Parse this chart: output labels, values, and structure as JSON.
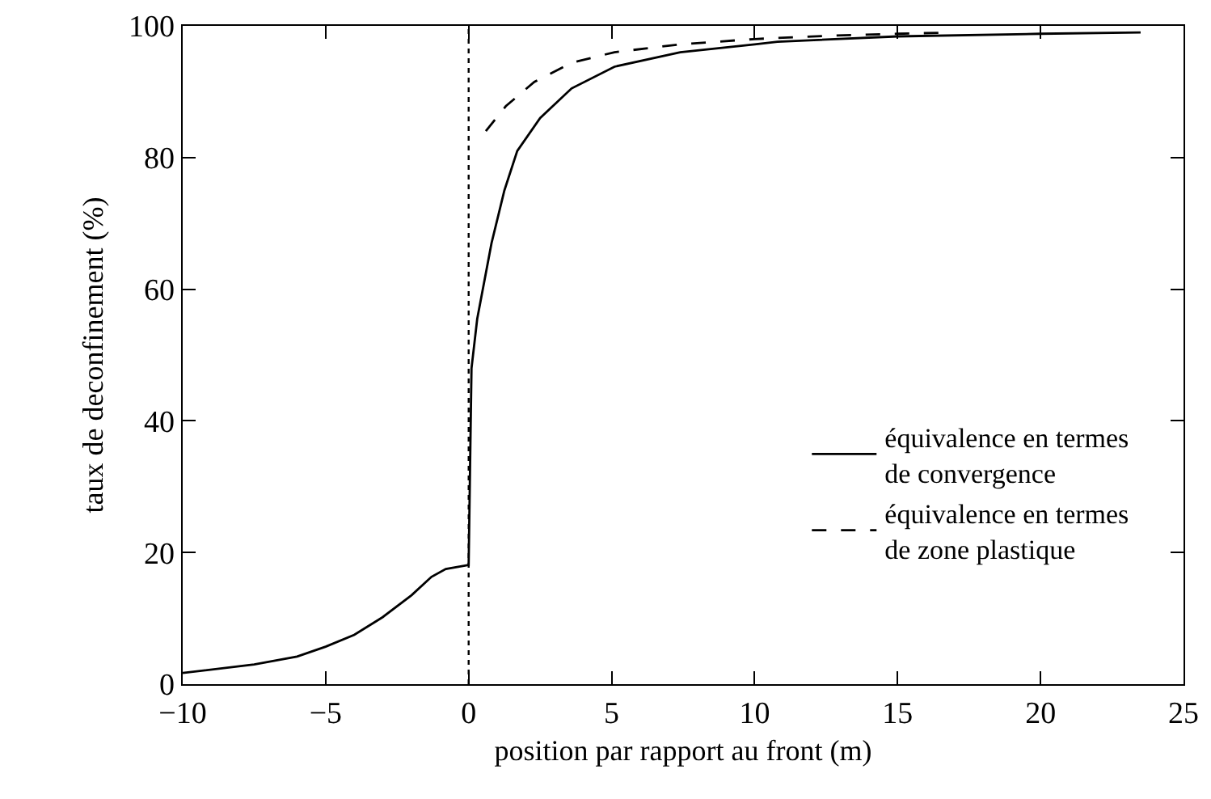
{
  "chart_data": {
    "type": "line",
    "xlabel": "position par rapport au front (m)",
    "ylabel": "taux de deconfinement (%)",
    "xlim": [
      -10,
      25
    ],
    "ylim": [
      0,
      100
    ],
    "xticks": [
      {
        "value": -10,
        "label": "−10"
      },
      {
        "value": -5,
        "label": "−5"
      },
      0,
      5,
      10,
      15,
      20,
      25
    ],
    "yticks": [
      0,
      20,
      40,
      60,
      80,
      100
    ],
    "grid": false,
    "legend": "bottom right",
    "ref_lines": [
      {
        "axis": "x",
        "value": 0,
        "label": null,
        "color": "#000000",
        "line_style": "dotted"
      }
    ],
    "series": [
      {
        "name": "équivalence en termes\nde convergence",
        "color": "#000000",
        "line_style": "solid",
        "x": [
          -10,
          -7.5,
          -6,
          -5,
          -4,
          -3,
          -2,
          -1.3,
          -0.8,
          0,
          0.1,
          0.3,
          0.8,
          1.25,
          1.7,
          2.5,
          3.6,
          5.1,
          7.4,
          10,
          10.8,
          15,
          20,
          23.5
        ],
        "values": [
          1.7,
          3.0,
          4.2,
          5.7,
          7.5,
          10.2,
          13.5,
          16.3,
          17.5,
          18.1,
          48,
          55.5,
          67,
          75,
          81,
          86,
          90.5,
          93.8,
          96,
          97.2,
          97.6,
          98.4,
          98.8,
          99.0
        ]
      },
      {
        "name": "équivalence en termes\nde zone plastique",
        "color": "#000000",
        "line_style": "dashed",
        "x": [
          0.6,
          1.3,
          2.3,
          3.6,
          5.1,
          7.4,
          10,
          12.6,
          15,
          16.9
        ],
        "values": [
          84,
          87.8,
          91.5,
          94.4,
          96,
          97.2,
          98,
          98.5,
          98.8,
          99
        ]
      }
    ]
  }
}
